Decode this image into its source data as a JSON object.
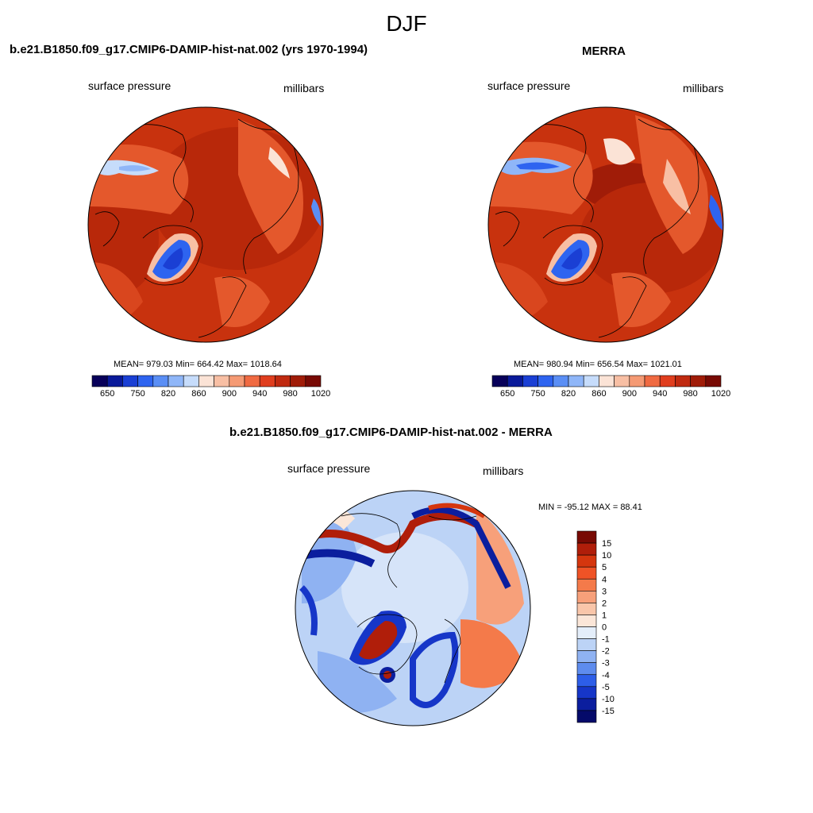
{
  "figure": {
    "title": "DJF"
  },
  "panels": [
    {
      "title": "b.e21.B1850.f09_g17.CMIP6-DAMIP-hist-nat.002 (yrs 1970-1994)",
      "left_label": "surface pressure",
      "right_label": "millibars",
      "stats": "MEAN= 979.03  Min= 664.42  Max= 1018.64"
    },
    {
      "title": "MERRA",
      "left_label": "surface pressure",
      "right_label": "millibars",
      "stats": "MEAN= 980.94  Min= 656.54  Max= 1021.01"
    },
    {
      "title": "b.e21.B1850.f09_g17.CMIP6-DAMIP-hist-nat.002 - MERRA",
      "left_label": "surface pressure",
      "right_label": "millibars",
      "stats": "MIN = -95.12 MAX =  88.41"
    }
  ],
  "colorbars": {
    "absolute": {
      "tick_labels": [
        "650",
        "750",
        "820",
        "860",
        "900",
        "940",
        "980",
        "1020"
      ],
      "colors": [
        "#08005a",
        "#0a1a9a",
        "#1a3fd4",
        "#2e64f0",
        "#5a8ef5",
        "#8fb6f8",
        "#c6dcfb",
        "#fbe3d6",
        "#f8bfa4",
        "#f59a74",
        "#f06a42",
        "#e03e1e",
        "#c02a10",
        "#a01c08",
        "#780a04"
      ]
    },
    "difference": {
      "tick_labels": [
        "15",
        "10",
        "5",
        "4",
        "3",
        "2",
        "1",
        "0",
        "-1",
        "-2",
        "-3",
        "-4",
        "-5",
        "-10",
        "-15"
      ],
      "colors": [
        "#780a04",
        "#b01e0a",
        "#d5360e",
        "#ef5326",
        "#f47a4a",
        "#f7a07a",
        "#f9c6aa",
        "#fbe6d8",
        "#e4eefa",
        "#bcd3f6",
        "#8fb2f2",
        "#5e8cee",
        "#2d5ee8",
        "#1636c8",
        "#0b1e9e",
        "#050a6a"
      ]
    }
  }
}
